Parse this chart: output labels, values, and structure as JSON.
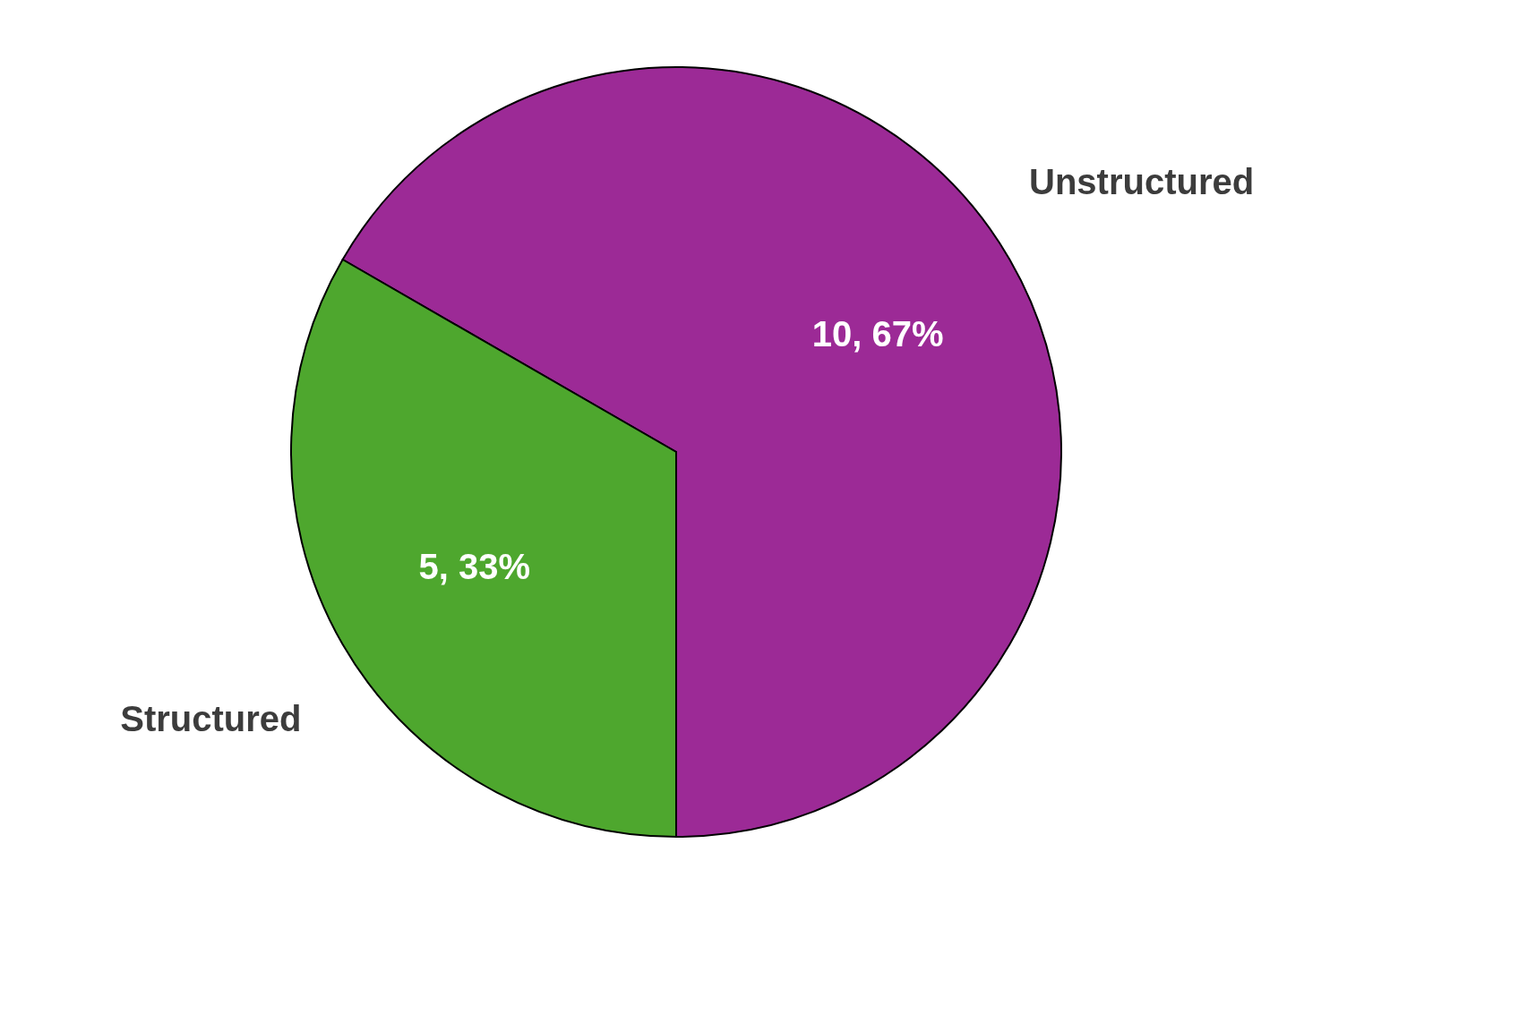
{
  "chart_data": {
    "type": "pie",
    "categories": [
      "Unstructured",
      "Structured"
    ],
    "values": [
      10,
      5
    ],
    "colors": [
      "#9c2a96",
      "#4ea72e"
    ],
    "value_labels": [
      "10, 67%",
      "5, 33%"
    ],
    "legend": false
  }
}
